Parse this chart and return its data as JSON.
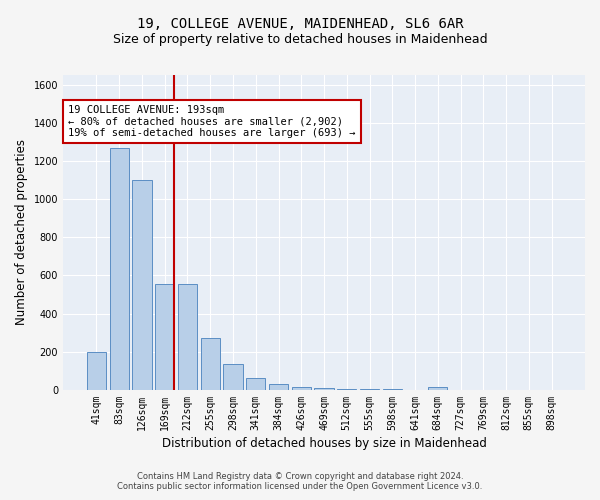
{
  "title": "19, COLLEGE AVENUE, MAIDENHEAD, SL6 6AR",
  "subtitle": "Size of property relative to detached houses in Maidenhead",
  "xlabel": "Distribution of detached houses by size in Maidenhead",
  "ylabel": "Number of detached properties",
  "footnote1": "Contains HM Land Registry data © Crown copyright and database right 2024.",
  "footnote2": "Contains public sector information licensed under the Open Government Licence v3.0.",
  "categories": [
    "41sqm",
    "83sqm",
    "126sqm",
    "169sqm",
    "212sqm",
    "255sqm",
    "298sqm",
    "341sqm",
    "384sqm",
    "426sqm",
    "469sqm",
    "512sqm",
    "555sqm",
    "598sqm",
    "641sqm",
    "684sqm",
    "727sqm",
    "769sqm",
    "812sqm",
    "855sqm",
    "898sqm"
  ],
  "values": [
    197,
    1268,
    1100,
    556,
    556,
    270,
    135,
    62,
    32,
    18,
    10,
    5,
    4,
    3,
    0,
    18,
    0,
    0,
    0,
    0,
    0
  ],
  "bar_color": "#b8cfe8",
  "bar_edge_color": "#5b8ec4",
  "background_color": "#e8eef6",
  "grid_color": "#ffffff",
  "vline_x": 3.42,
  "vline_color": "#c00000",
  "annotation_text": "19 COLLEGE AVENUE: 193sqm\n← 80% of detached houses are smaller (2,902)\n19% of semi-detached houses are larger (693) →",
  "annotation_box_color": "#ffffff",
  "annotation_box_edge": "#c00000",
  "ylim": [
    0,
    1650
  ],
  "title_fontsize": 10,
  "subtitle_fontsize": 9,
  "axis_label_fontsize": 8.5,
  "tick_fontsize": 7,
  "annotation_fontsize": 7.5,
  "footnote_fontsize": 6
}
